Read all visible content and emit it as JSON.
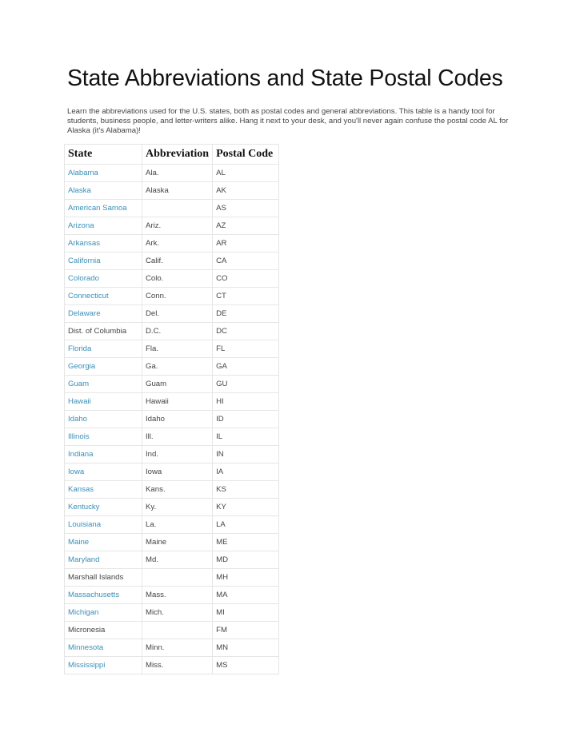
{
  "title": "State Abbreviations and State Postal Codes",
  "intro": "Learn the abbreviations used for the U.S. states, both as postal codes and general abbreviations. This table is a handy tool for students, business people, and letter-writers alike. Hang it next to your desk, and you'll never again confuse the postal code AL for Alaska (it's Alabama)!",
  "colors": {
    "link": "#3a8fb7",
    "text": "#444444"
  },
  "table": {
    "headers": [
      "State",
      "Abbreviation",
      "Postal Code"
    ],
    "rows": [
      {
        "state": "Alabama",
        "abbr": "Ala.",
        "code": "AL",
        "link": true
      },
      {
        "state": "Alaska",
        "abbr": "Alaska",
        "code": "AK",
        "link": true
      },
      {
        "state": "American Samoa",
        "abbr": "",
        "code": "AS",
        "link": true
      },
      {
        "state": "Arizona",
        "abbr": "Ariz.",
        "code": "AZ",
        "link": true
      },
      {
        "state": "Arkansas",
        "abbr": "Ark.",
        "code": "AR",
        "link": true
      },
      {
        "state": "California",
        "abbr": "Calif.",
        "code": "CA",
        "link": true
      },
      {
        "state": "Colorado",
        "abbr": "Colo.",
        "code": "CO",
        "link": true
      },
      {
        "state": "Connecticut",
        "abbr": "Conn.",
        "code": "CT",
        "link": true
      },
      {
        "state": "Delaware",
        "abbr": "Del.",
        "code": "DE",
        "link": true
      },
      {
        "state": "Dist. of Columbia",
        "abbr": "D.C.",
        "code": "DC",
        "link": false
      },
      {
        "state": "Florida",
        "abbr": "Fla.",
        "code": "FL",
        "link": true
      },
      {
        "state": "Georgia",
        "abbr": "Ga.",
        "code": "GA",
        "link": true
      },
      {
        "state": "Guam",
        "abbr": "Guam",
        "code": "GU",
        "link": true
      },
      {
        "state": "Hawaii",
        "abbr": "Hawaii",
        "code": "HI",
        "link": true
      },
      {
        "state": "Idaho",
        "abbr": "Idaho",
        "code": "ID",
        "link": true
      },
      {
        "state": "Illinois",
        "abbr": "Ill.",
        "code": "IL",
        "link": true
      },
      {
        "state": "Indiana",
        "abbr": "Ind.",
        "code": "IN",
        "link": true
      },
      {
        "state": "Iowa",
        "abbr": "Iowa",
        "code": "IA",
        "link": true
      },
      {
        "state": "Kansas",
        "abbr": "Kans.",
        "code": "KS",
        "link": true
      },
      {
        "state": "Kentucky",
        "abbr": "Ky.",
        "code": "KY",
        "link": true
      },
      {
        "state": "Louisiana",
        "abbr": "La.",
        "code": "LA",
        "link": true
      },
      {
        "state": "Maine",
        "abbr": "Maine",
        "code": "ME",
        "link": true
      },
      {
        "state": "Maryland",
        "abbr": "Md.",
        "code": "MD",
        "link": true
      },
      {
        "state": "Marshall Islands",
        "abbr": "",
        "code": "MH",
        "link": false
      },
      {
        "state": "Massachusetts",
        "abbr": "Mass.",
        "code": "MA",
        "link": true
      },
      {
        "state": "Michigan",
        "abbr": "Mich.",
        "code": "MI",
        "link": true
      },
      {
        "state": "Micronesia",
        "abbr": "",
        "code": "FM",
        "link": false
      },
      {
        "state": "Minnesota",
        "abbr": "Minn.",
        "code": "MN",
        "link": true
      },
      {
        "state": "Mississippi",
        "abbr": "Miss.",
        "code": "MS",
        "link": true
      }
    ]
  }
}
